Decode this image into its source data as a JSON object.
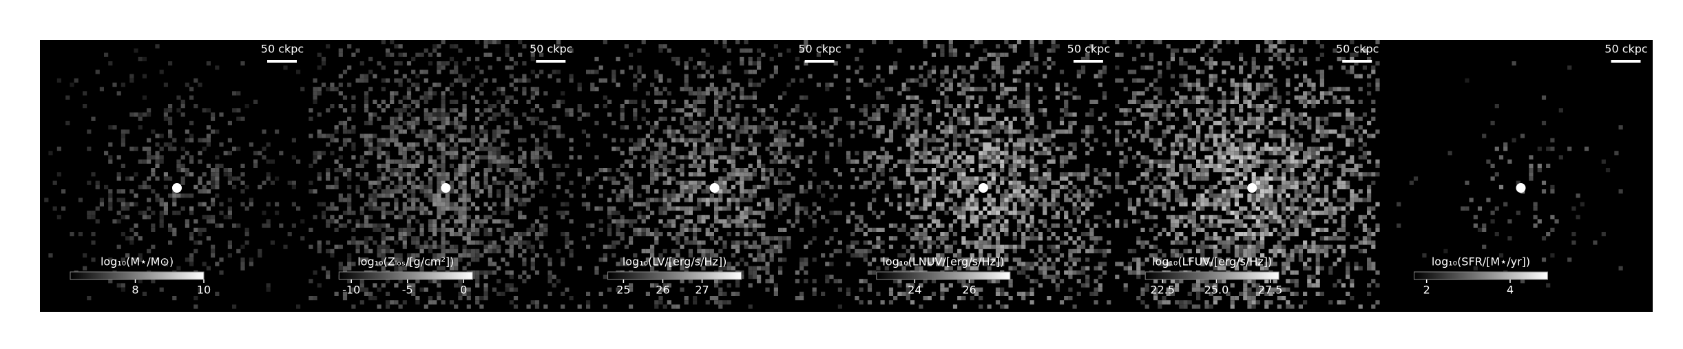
{
  "chart_data": [
    {
      "type": "image",
      "scale_bar": "50 ckpc",
      "colorbar_label": "log₁₀(M⋆/M⊙)",
      "clim": [
        6.1,
        10
      ],
      "cticks": [
        8,
        10
      ]
    },
    {
      "type": "image",
      "scale_bar": "50 ckpc",
      "colorbar_label": "log₁₀(Zₗₒₛ/[g/cm²])",
      "clim": [
        -11.1,
        0.8
      ],
      "cticks": [
        -10,
        -5,
        0
      ]
    },
    {
      "type": "image",
      "scale_bar": "50 ckpc",
      "colorbar_label": "log₁₀(LV/[erg/s/Hz])",
      "clim": [
        24.6,
        28.0
      ],
      "cticks": [
        25,
        26,
        27
      ]
    },
    {
      "type": "image",
      "scale_bar": "50 ckpc",
      "colorbar_label": "log₁₀(LNUV/[erg/s/Hz])",
      "clim": [
        22.6,
        27.5
      ],
      "cticks": [
        24,
        26
      ]
    },
    {
      "type": "image",
      "scale_bar": "50 ckpc",
      "colorbar_label": "log₁₀(LFUV/[erg/s/Hz])",
      "clim": [
        21.7,
        27.9
      ],
      "cticks": [
        22.5,
        {
          "value": 25,
          "label": "25.0"
        },
        27.5
      ]
    },
    {
      "type": "image",
      "scale_bar": "50 ckpc",
      "colorbar_label": "log₁₀(SFR/[M⋆/yr])",
      "clim": [
        1.7,
        4.9
      ],
      "cticks": [
        2,
        4
      ]
    }
  ]
}
